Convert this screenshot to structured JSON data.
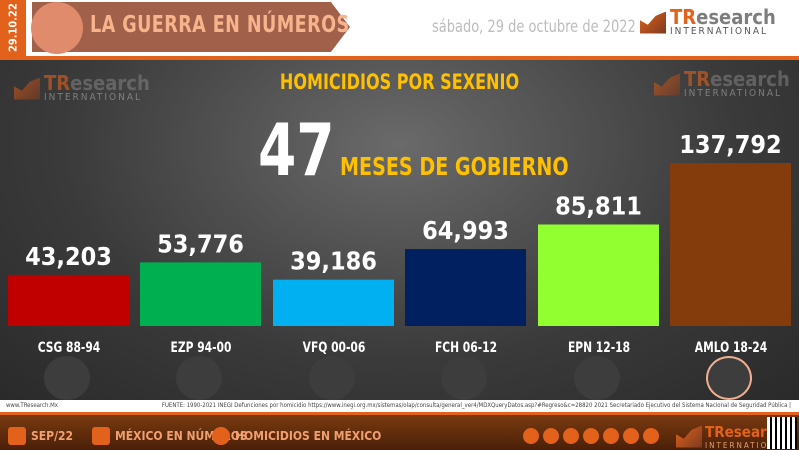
{
  "header": {
    "date_strip": "29.10.22",
    "title": "LA GUERRA EN NÚMEROS",
    "date": "sábado, 29 de octubre de 2022",
    "logo": {
      "tr": "TR",
      "esearch": "esearch",
      "intl": "INTERNATIONAL"
    }
  },
  "main": {
    "months_number": "47",
    "months_label": "MESES DE GOBIERNO"
  },
  "chart_data": {
    "type": "bar",
    "title": "HOMICIDIOS POR SEXENIO",
    "categories": [
      "CSG 88-94",
      "EZP 94-00",
      "VFQ 00-06",
      "FCH 06-12",
      "EPN 12-18",
      "AMLO 18-24"
    ],
    "values": [
      43203,
      53776,
      39186,
      64993,
      85811,
      137792
    ],
    "data_labels": [
      "43,203",
      "53,776",
      "39,186",
      "64,993",
      "85,811",
      "137,792"
    ],
    "colors": [
      "#c00000",
      "#00b050",
      "#00b0f0",
      "#002060",
      "#92ff30",
      "#843c0c"
    ],
    "ylim": [
      0,
      140000
    ],
    "grid": false,
    "legend": "none"
  },
  "source": {
    "site": "www.TResearch.Mx",
    "text": "FUENTE: 1990-2021 INEGI Defunciones por homicidio https://www.inegi.org.mx/sistemas/olap/consulta/general_ver4/MDXQueryDatos.asp?#Regreso&c=28820  2021 Secretariado Ejecutivo del Sistema Nacional de Seguridad Pública |"
  },
  "footer": {
    "items": [
      "SEP/22",
      "MÉXICO EN NÚMEROS",
      "HOMICIDIOS EN MÉXICO"
    ],
    "social_icons": [
      "globe-icon",
      "whatsapp-icon",
      "email-icon",
      "twitter-icon",
      "facebook-icon",
      "linkedin-icon",
      "youtube-icon"
    ]
  }
}
